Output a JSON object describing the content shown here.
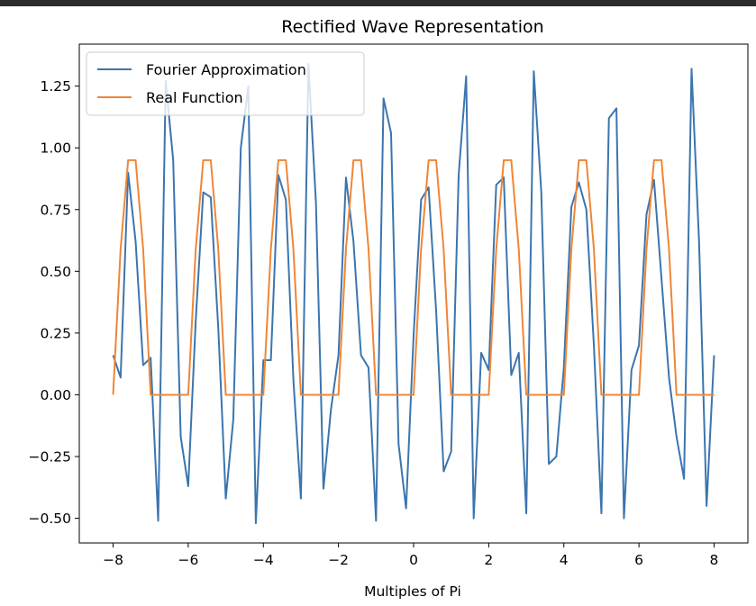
{
  "chart_data": {
    "type": "line",
    "title": "Rectified Wave Representation",
    "xlabel": "Multiples of Pi",
    "ylabel": "",
    "xlim": [
      -8.9,
      8.9
    ],
    "ylim": [
      -0.6,
      1.42
    ],
    "xticks": [
      -8,
      -6,
      -4,
      -2,
      0,
      2,
      4,
      6,
      8
    ],
    "xtick_labels": [
      "−8",
      "−6",
      "−4",
      "−2",
      "0",
      "2",
      "4",
      "6",
      "8"
    ],
    "yticks": [
      -0.5,
      -0.25,
      0.0,
      0.25,
      0.5,
      0.75,
      1.0,
      1.25
    ],
    "ytick_labels": [
      "−0.50",
      "−0.25",
      "0.00",
      "0.25",
      "0.50",
      "0.75",
      "1.00",
      "1.25"
    ],
    "grid": false,
    "legend": "upper left",
    "series": [
      {
        "name": "Fourier Approximation",
        "color": "#3b75af",
        "x": [
          -8.0,
          -7.8,
          -7.6,
          -7.4,
          -7.2,
          -7.0,
          -6.8,
          -6.6,
          -6.4,
          -6.2,
          -6.0,
          -5.8,
          -5.6,
          -5.4,
          -5.2,
          -5.0,
          -4.8,
          -4.6,
          -4.4,
          -4.2,
          -4.0,
          -3.8,
          -3.6,
          -3.4,
          -3.2,
          -3.0,
          -2.8,
          -2.6,
          -2.4,
          -2.2,
          -2.0,
          -1.8,
          -1.6,
          -1.4,
          -1.2,
          -1.0,
          -0.8,
          -0.6,
          -0.4,
          -0.2,
          0.0,
          0.2,
          0.4,
          0.6,
          0.8,
          1.0,
          1.2,
          1.4,
          1.6,
          1.8,
          2.0,
          2.2,
          2.4,
          2.6,
          2.8,
          3.0,
          3.2,
          3.4,
          3.6,
          3.8,
          4.0,
          4.2,
          4.4,
          4.6,
          4.8,
          5.0,
          5.2,
          5.4,
          5.6,
          5.8,
          6.0,
          6.2,
          6.4,
          6.6,
          6.8,
          7.0,
          7.2,
          7.4,
          7.6,
          7.8,
          8.0
        ],
        "y": [
          0.16,
          0.07,
          0.9,
          0.62,
          0.12,
          0.15,
          -0.51,
          1.27,
          0.95,
          -0.17,
          -0.37,
          0.3,
          0.82,
          0.8,
          0.27,
          -0.42,
          -0.1,
          1.0,
          1.25,
          -0.52,
          0.14,
          0.14,
          0.89,
          0.79,
          0.06,
          -0.42,
          1.34,
          0.78,
          -0.38,
          -0.06,
          0.16,
          0.88,
          0.62,
          0.16,
          0.11,
          -0.51,
          1.2,
          1.06,
          -0.2,
          -0.46,
          0.24,
          0.79,
          0.84,
          0.34,
          -0.31,
          -0.23,
          0.89,
          1.29,
          -0.5,
          0.17,
          0.1,
          0.85,
          0.88,
          0.08,
          0.17,
          -0.48,
          1.31,
          0.82,
          -0.28,
          -0.25,
          0.11,
          0.76,
          0.86,
          0.75,
          0.2,
          -0.48,
          1.12,
          1.16,
          -0.5,
          0.1,
          0.2,
          0.73,
          0.87,
          0.47,
          0.07,
          -0.17,
          -0.34,
          1.32,
          0.62,
          -0.45,
          0.16
        ]
      },
      {
        "name": "Real Function",
        "color": "#ef8636",
        "x": [
          -8.0,
          -7.8,
          -7.6,
          -7.4,
          -7.2,
          -7.0,
          -6.8,
          -6.6,
          -6.4,
          -6.2,
          -6.0,
          -5.8,
          -5.6,
          -5.4,
          -5.2,
          -5.0,
          -4.8,
          -4.6,
          -4.4,
          -4.2,
          -4.0,
          -3.8,
          -3.6,
          -3.4,
          -3.2,
          -3.0,
          -2.8,
          -2.6,
          -2.4,
          -2.2,
          -2.0,
          -1.8,
          -1.6,
          -1.4,
          -1.2,
          -1.0,
          -0.8,
          -0.6,
          -0.4,
          -0.2,
          0.0,
          0.2,
          0.4,
          0.6,
          0.8,
          1.0,
          1.2,
          1.4,
          1.6,
          1.8,
          2.0,
          2.2,
          2.4,
          2.6,
          2.8,
          3.0,
          3.2,
          3.4,
          3.6,
          3.8,
          4.0,
          4.2,
          4.4,
          4.6,
          4.8,
          5.0,
          5.2,
          5.4,
          5.6,
          5.8,
          6.0,
          6.2,
          6.4,
          6.6,
          6.8,
          7.0,
          7.2,
          7.4,
          7.6,
          7.8,
          8.0
        ],
        "y": [
          0.0,
          0.59,
          0.95,
          0.95,
          0.59,
          0.0,
          0.0,
          0.0,
          0.0,
          0.0,
          0.0,
          0.59,
          0.95,
          0.95,
          0.59,
          0.0,
          0.0,
          0.0,
          0.0,
          0.0,
          0.0,
          0.59,
          0.95,
          0.95,
          0.59,
          0.0,
          0.0,
          0.0,
          0.0,
          0.0,
          0.0,
          0.59,
          0.95,
          0.95,
          0.59,
          0.0,
          0.0,
          0.0,
          0.0,
          0.0,
          0.0,
          0.59,
          0.95,
          0.95,
          0.59,
          0.0,
          0.0,
          0.0,
          0.0,
          0.0,
          0.0,
          0.59,
          0.95,
          0.95,
          0.59,
          0.0,
          0.0,
          0.0,
          0.0,
          0.0,
          0.0,
          0.59,
          0.95,
          0.95,
          0.59,
          0.0,
          0.0,
          0.0,
          0.0,
          0.0,
          0.0,
          0.59,
          0.95,
          0.95,
          0.59,
          0.0,
          0.0,
          0.0,
          0.0,
          0.0,
          0.0
        ]
      }
    ]
  }
}
